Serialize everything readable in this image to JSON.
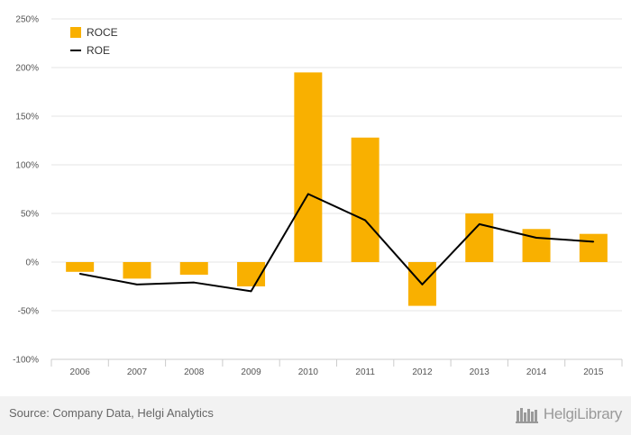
{
  "chart_data": {
    "type": "bar",
    "categories": [
      "2006",
      "2007",
      "2008",
      "2009",
      "2010",
      "2011",
      "2012",
      "2013",
      "2014",
      "2015"
    ],
    "series": [
      {
        "name": "ROCE",
        "kind": "bar",
        "color": "#f9b000",
        "values": [
          -10,
          -17,
          -13,
          -25,
          195,
          128,
          -45,
          50,
          34,
          29
        ]
      },
      {
        "name": "ROE",
        "kind": "line",
        "color": "#000000",
        "values": [
          -12,
          -23,
          -21,
          -30,
          70,
          43,
          -23,
          39,
          25,
          21
        ]
      }
    ],
    "y_ticks": [
      -100,
      -50,
      0,
      50,
      100,
      150,
      200,
      250
    ],
    "y_tick_labels": [
      "-100%",
      "-50%",
      "0%",
      "50%",
      "100%",
      "150%",
      "200%",
      "250%"
    ],
    "ylim": [
      -100,
      250
    ],
    "title": "",
    "xlabel": "",
    "ylabel": "",
    "grid": true,
    "legend_position": "top-left"
  },
  "legend": {
    "items": [
      "ROCE",
      "ROE"
    ]
  },
  "footer": {
    "source": "Source: Company Data, Helgi Analytics",
    "brand": "HelgiLibrary"
  }
}
